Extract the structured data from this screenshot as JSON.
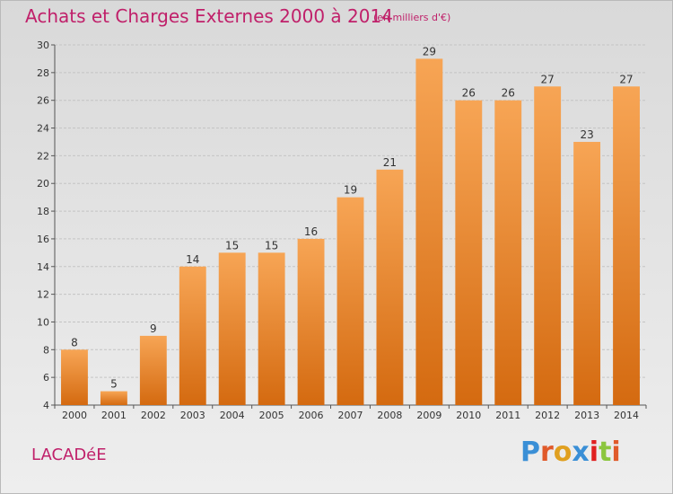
{
  "header": {
    "title": "Achats et Charges Externes 2000 à 2014",
    "subtitle": "(en milliers d'€)"
  },
  "footer": {
    "place": "LACADéE",
    "logo": "Proxiti",
    "logo_colors": [
      "#3a8fd6",
      "#e05a2a",
      "#e0a020",
      "#3a8fd6",
      "#e02020",
      "#8cc63f",
      "#e05a2a"
    ]
  },
  "chart_data": {
    "type": "bar",
    "title": "Achats et Charges Externes 2000 à 2014",
    "subtitle": "(en milliers d'€)",
    "xlabel": "",
    "ylabel": "",
    "categories": [
      "2000",
      "2001",
      "2002",
      "2003",
      "2004",
      "2005",
      "2006",
      "2007",
      "2008",
      "2009",
      "2010",
      "2011",
      "2012",
      "2013",
      "2014"
    ],
    "values": [
      8,
      5,
      9,
      14,
      15,
      15,
      16,
      19,
      21,
      29,
      26,
      26,
      27,
      23,
      27
    ],
    "ylim": [
      4,
      30
    ],
    "yticks": [
      4,
      6,
      8,
      10,
      12,
      14,
      16,
      18,
      20,
      22,
      24,
      26,
      28,
      30
    ],
    "grid": true,
    "bar_color_top": "#f7a555",
    "bar_color_bottom": "#d46a10"
  }
}
